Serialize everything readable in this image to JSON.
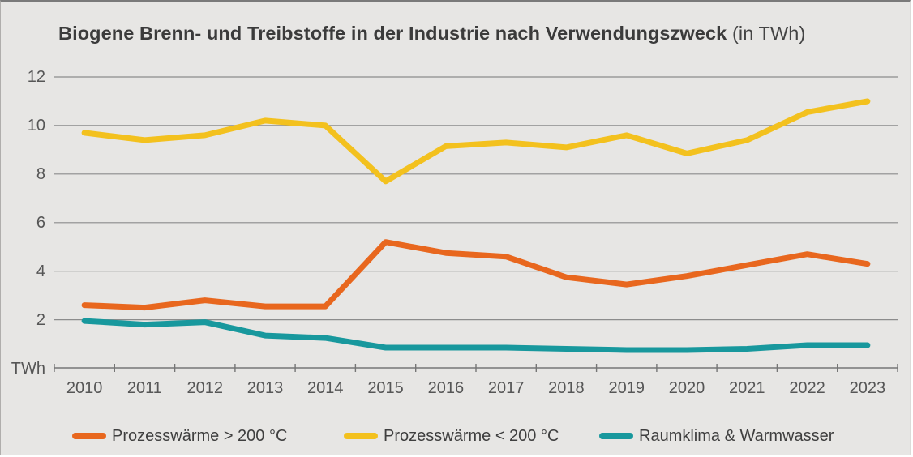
{
  "window": {
    "background_color": "#e7e6e4",
    "page_color": "#ffffff"
  },
  "chart": {
    "title_main": "Biogene Brenn- und Treibstoffe in der Industrie nach Verwendungszweck",
    "title_unit": " (in TWh)",
    "axis_unit_label": "TWh",
    "gridline_color": "#8c8c8c",
    "axis_color": "#767676",
    "label_color": "#565656"
  },
  "chart_data": {
    "type": "line",
    "title": "Biogene Brenn- und Treibstoffe in der Industrie nach Verwendungszweck (in TWh)",
    "categories": [
      "2010",
      "2011",
      "2012",
      "2013",
      "2014",
      "2015",
      "2016",
      "2017",
      "2018",
      "2019",
      "2020",
      "2021",
      "2022",
      "2023"
    ],
    "series": [
      {
        "name": "Prozesswärme > 200 °C",
        "color": "#e8671e",
        "values": [
          2.6,
          2.5,
          2.8,
          2.55,
          2.55,
          5.2,
          4.75,
          4.6,
          3.75,
          3.45,
          3.8,
          4.25,
          4.7,
          4.3
        ]
      },
      {
        "name": "Prozesswärme < 200 °C",
        "color": "#f3c11e",
        "values": [
          9.7,
          9.4,
          9.6,
          10.2,
          10.0,
          7.7,
          9.15,
          9.3,
          9.1,
          9.6,
          8.85,
          9.4,
          10.55,
          11.0
        ]
      },
      {
        "name": "Raumklima & Warmwasser",
        "color": "#18989d",
        "values": [
          1.95,
          1.8,
          1.9,
          1.35,
          1.25,
          0.85,
          0.85,
          0.85,
          0.8,
          0.75,
          0.75,
          0.8,
          0.95,
          0.95
        ]
      }
    ],
    "xlabel": "",
    "ylabel": "TWh",
    "ylim": [
      0,
      12
    ],
    "yticks": [
      2,
      4,
      6,
      8,
      10,
      12
    ],
    "grid": true,
    "legend_position": "bottom"
  }
}
